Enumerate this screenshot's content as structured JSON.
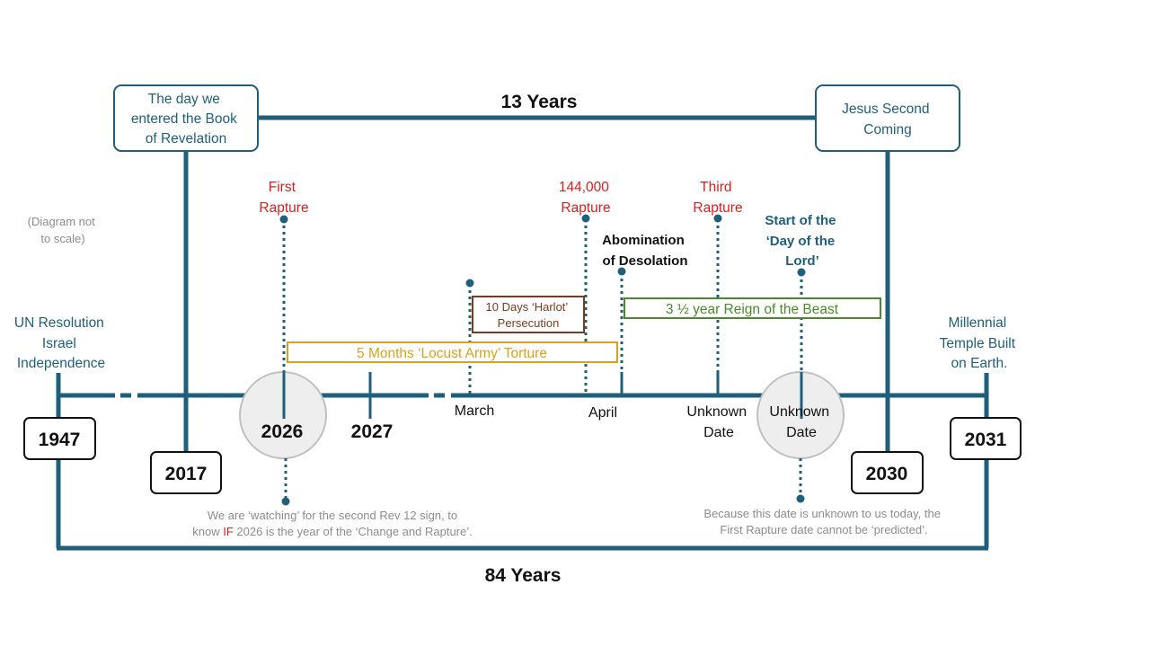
{
  "colors": {
    "blue": "#1f5f7a",
    "red": "#d62020",
    "gold": "#d9a21b",
    "green": "#4a8a2a",
    "brown": "#7a3b1c",
    "gray_text": "#8c8c8c",
    "circle_fill": "#eeeeee",
    "circle_stroke": "#c0c0c0"
  },
  "spans": {
    "top_span": "13 Years",
    "bottom_span": "84 Years"
  },
  "callouts": {
    "revelation": [
      "The day we",
      "entered the Book",
      "of Revelation"
    ],
    "second_coming": [
      "Jesus Second",
      "Coming"
    ]
  },
  "note": [
    "(Diagram not",
    "to scale)"
  ],
  "side_labels": {
    "un_resolution": [
      "UN Resolution",
      "Israel",
      "Independence"
    ],
    "millennial": [
      "Millennial",
      "Temple Built",
      "on Earth."
    ]
  },
  "years": {
    "y1947": "1947",
    "y2017": "2017",
    "y2026": "2026",
    "y2027": "2027",
    "y2030": "2030",
    "y2031": "2031"
  },
  "timeline_labels": {
    "march": "March",
    "april": "April",
    "unknown1": [
      "Unknown",
      "Date"
    ],
    "unknown2": [
      "Unknown",
      "Date"
    ]
  },
  "events": {
    "first_rapture": [
      "First",
      "Rapture"
    ],
    "rapture_144000": [
      "144,000",
      "Rapture"
    ],
    "third_rapture": [
      "Third",
      "Rapture"
    ],
    "abomination": [
      "Abomination",
      "of Desolation"
    ],
    "day_of_lord": [
      "Start of the",
      "‘Day of the",
      "Lord’"
    ]
  },
  "periods": {
    "locust": "5 Months ‘Locust Army’ Torture",
    "harlot": [
      "10 Days ‘Harlot’",
      "Persecution"
    ],
    "beast": "3 ½ year Reign of the Beast"
  },
  "notes_bottom": {
    "watching_pre": "We are ‘watching’ for the second Rev 12 sign, to",
    "watching_line2_a": "know ",
    "watching_line2_if": "IF",
    "watching_line2_b": " 2026 is the year of the ‘Change and Rapture’.",
    "unknown_note": [
      "Because this date is unknown to us today, the",
      "First Rapture date cannot be ‘predicted’."
    ]
  }
}
